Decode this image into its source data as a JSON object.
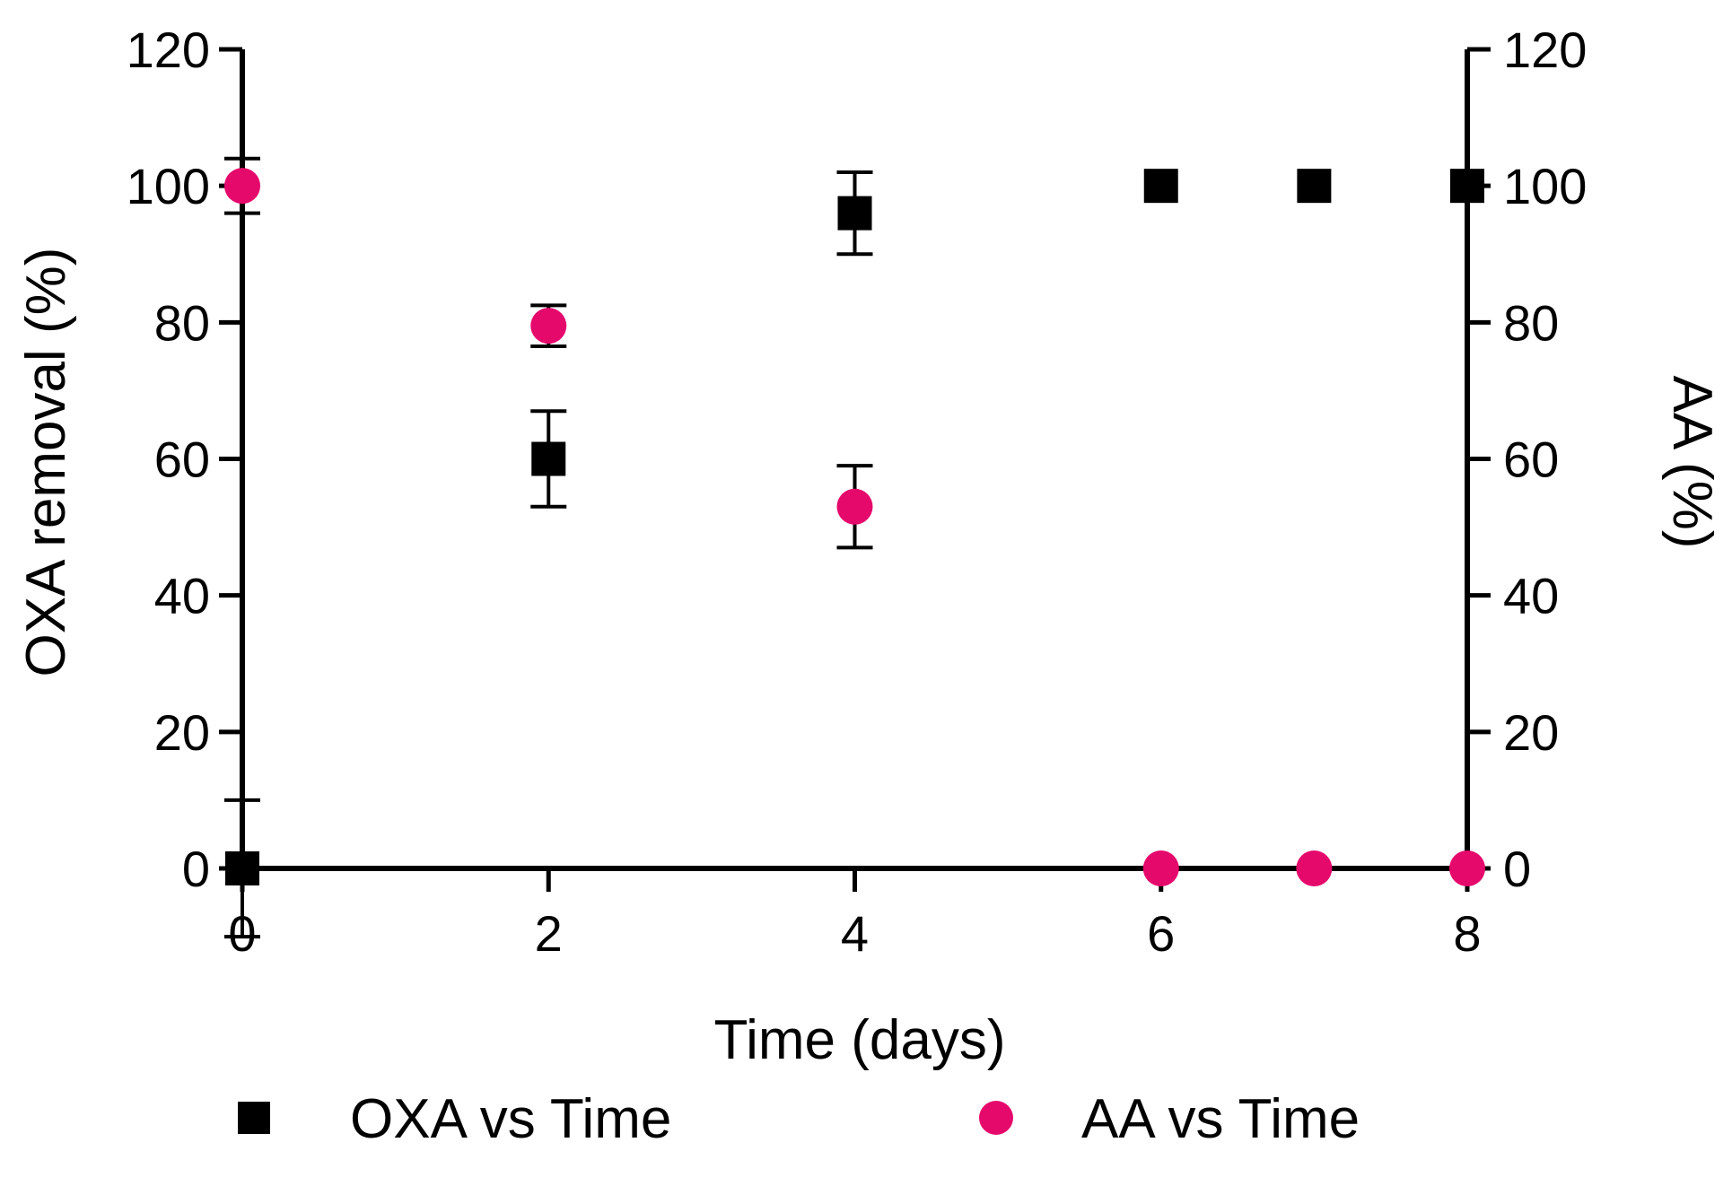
{
  "chart_data": {
    "type": "scatter",
    "xlabel": "Time (days)",
    "ylabel_left": "OXA removal (%)",
    "ylabel_right": "AA (%)",
    "xlim": [
      0,
      8
    ],
    "ylim_left": [
      0,
      120
    ],
    "ylim_right": [
      0,
      120
    ],
    "x_ticks": [
      0,
      2,
      4,
      6,
      8
    ],
    "y_ticks": [
      0,
      20,
      40,
      60,
      80,
      100,
      120
    ],
    "grid": false,
    "legend_position": "bottom",
    "series": [
      {
        "name": "OXA vs Time",
        "marker": "square",
        "color": "#000000",
        "axis": "left",
        "points": [
          {
            "x": 0,
            "y": 0,
            "err": 10
          },
          {
            "x": 2,
            "y": 60,
            "err": 7
          },
          {
            "x": 4,
            "y": 96,
            "err": 6
          },
          {
            "x": 6,
            "y": 100,
            "err": 0
          },
          {
            "x": 7,
            "y": 100,
            "err": 0
          },
          {
            "x": 8,
            "y": 100,
            "err": 0
          }
        ]
      },
      {
        "name": "AA vs Time",
        "marker": "circle",
        "color": "#e5096c",
        "axis": "right",
        "points": [
          {
            "x": 0,
            "y": 100,
            "err": 4
          },
          {
            "x": 2,
            "y": 79.5,
            "err": 3
          },
          {
            "x": 4,
            "y": 53,
            "err": 6
          },
          {
            "x": 6,
            "y": 0,
            "err": 0
          },
          {
            "x": 7,
            "y": 0,
            "err": 0
          },
          {
            "x": 8,
            "y": 0,
            "err": 0
          }
        ]
      }
    ]
  }
}
